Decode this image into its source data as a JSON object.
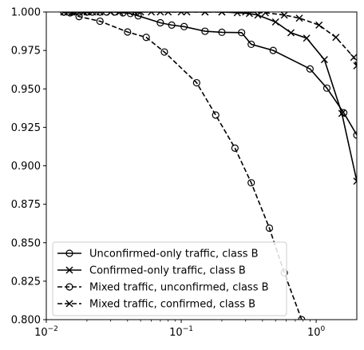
{
  "chart_data": {
    "type": "line",
    "xscale": "log",
    "xlim": [
      0.01,
      2.0
    ],
    "ylim": [
      0.8,
      1.0
    ],
    "grid": false,
    "legend_position": "lower-left",
    "y_ticks": [
      0.8,
      0.825,
      0.85,
      0.875,
      0.9,
      0.925,
      0.95,
      0.975,
      1.0
    ],
    "y_tick_labels": [
      "0.800",
      "0.825",
      "0.850",
      "0.875",
      "0.900",
      "0.925",
      "0.950",
      "0.975",
      "1.000"
    ],
    "x_ticks": [
      0.01,
      0.1,
      1
    ],
    "x_tick_labels": [
      {
        "base": "10",
        "exp": "−2"
      },
      {
        "base": "10",
        "exp": "−1"
      },
      {
        "base": "10",
        "exp": "0"
      }
    ],
    "series": [
      {
        "name": "Unconfirmed-only traffic, class B",
        "linestyle": "solid",
        "marker": "circle",
        "color": "#000000",
        "points": [
          [
            0.0135,
            1.0
          ],
          [
            0.0155,
            1.0
          ],
          [
            0.0175,
            1.0
          ],
          [
            0.02,
            1.0
          ],
          [
            0.022,
            1.0
          ],
          [
            0.025,
            1.0
          ],
          [
            0.028,
            1.0
          ],
          [
            0.032,
            1.0
          ],
          [
            0.037,
            0.9995
          ],
          [
            0.042,
            0.999
          ],
          [
            0.048,
            0.9975
          ],
          [
            0.07,
            0.993
          ],
          [
            0.085,
            0.9915
          ],
          [
            0.105,
            0.9905
          ],
          [
            0.15,
            0.9875
          ],
          [
            0.2,
            0.9868
          ],
          [
            0.28,
            0.9866
          ],
          [
            0.33,
            0.979
          ],
          [
            0.48,
            0.975
          ],
          [
            0.9,
            0.963
          ],
          [
            1.2,
            0.9505
          ],
          [
            1.6,
            0.9345
          ],
          [
            2.0,
            0.92
          ]
        ]
      },
      {
        "name": "Confirmed-only traffic, class B",
        "linestyle": "solid",
        "marker": "x",
        "color": "#000000",
        "points": [
          [
            0.0135,
            1.0
          ],
          [
            0.0155,
            1.0
          ],
          [
            0.0175,
            1.0
          ],
          [
            0.02,
            1.0
          ],
          [
            0.025,
            1.0
          ],
          [
            0.03,
            1.0
          ],
          [
            0.035,
            1.0
          ],
          [
            0.05,
            1.0
          ],
          [
            0.07,
            1.0
          ],
          [
            0.1,
            1.0
          ],
          [
            0.15,
            1.0
          ],
          [
            0.2,
            1.0
          ],
          [
            0.26,
            0.9995
          ],
          [
            0.32,
            0.999
          ],
          [
            0.37,
            0.998
          ],
          [
            0.5,
            0.9935
          ],
          [
            0.65,
            0.9865
          ],
          [
            0.85,
            0.983
          ],
          [
            1.15,
            0.969
          ],
          [
            1.55,
            0.934
          ],
          [
            2.0,
            0.89
          ]
        ]
      },
      {
        "name": "Mixed traffic, unconfirmed, class B",
        "linestyle": "dashed",
        "marker": "circle",
        "color": "#000000",
        "points": [
          [
            0.0135,
            1.0
          ],
          [
            0.015,
            0.9995
          ],
          [
            0.0175,
            0.997
          ],
          [
            0.025,
            0.994
          ],
          [
            0.04,
            0.987
          ],
          [
            0.055,
            0.9835
          ],
          [
            0.075,
            0.974
          ],
          [
            0.13,
            0.954
          ],
          [
            0.18,
            0.933
          ],
          [
            0.25,
            0.9115
          ],
          [
            0.33,
            0.889
          ],
          [
            0.45,
            0.8595
          ],
          [
            0.58,
            0.8305
          ],
          [
            0.78,
            0.8
          ],
          [
            0.85,
            0.79
          ]
        ]
      },
      {
        "name": "Mixed traffic, confirmed, class B",
        "linestyle": "dashed",
        "marker": "x",
        "color": "#000000",
        "points": [
          [
            0.0135,
            1.0
          ],
          [
            0.016,
            1.0
          ],
          [
            0.019,
            1.0
          ],
          [
            0.022,
            1.0
          ],
          [
            0.03,
            1.0
          ],
          [
            0.045,
            1.0
          ],
          [
            0.06,
            1.0
          ],
          [
            0.08,
            1.0
          ],
          [
            0.11,
            1.0
          ],
          [
            0.15,
            1.0
          ],
          [
            0.2,
            1.0
          ],
          [
            0.3,
            1.0
          ],
          [
            0.42,
            0.9995
          ],
          [
            0.58,
            0.998
          ],
          [
            0.75,
            0.996
          ],
          [
            1.05,
            0.9915
          ],
          [
            1.4,
            0.9835
          ],
          [
            1.9,
            0.9705
          ],
          [
            2.0,
            0.965
          ]
        ]
      }
    ]
  }
}
